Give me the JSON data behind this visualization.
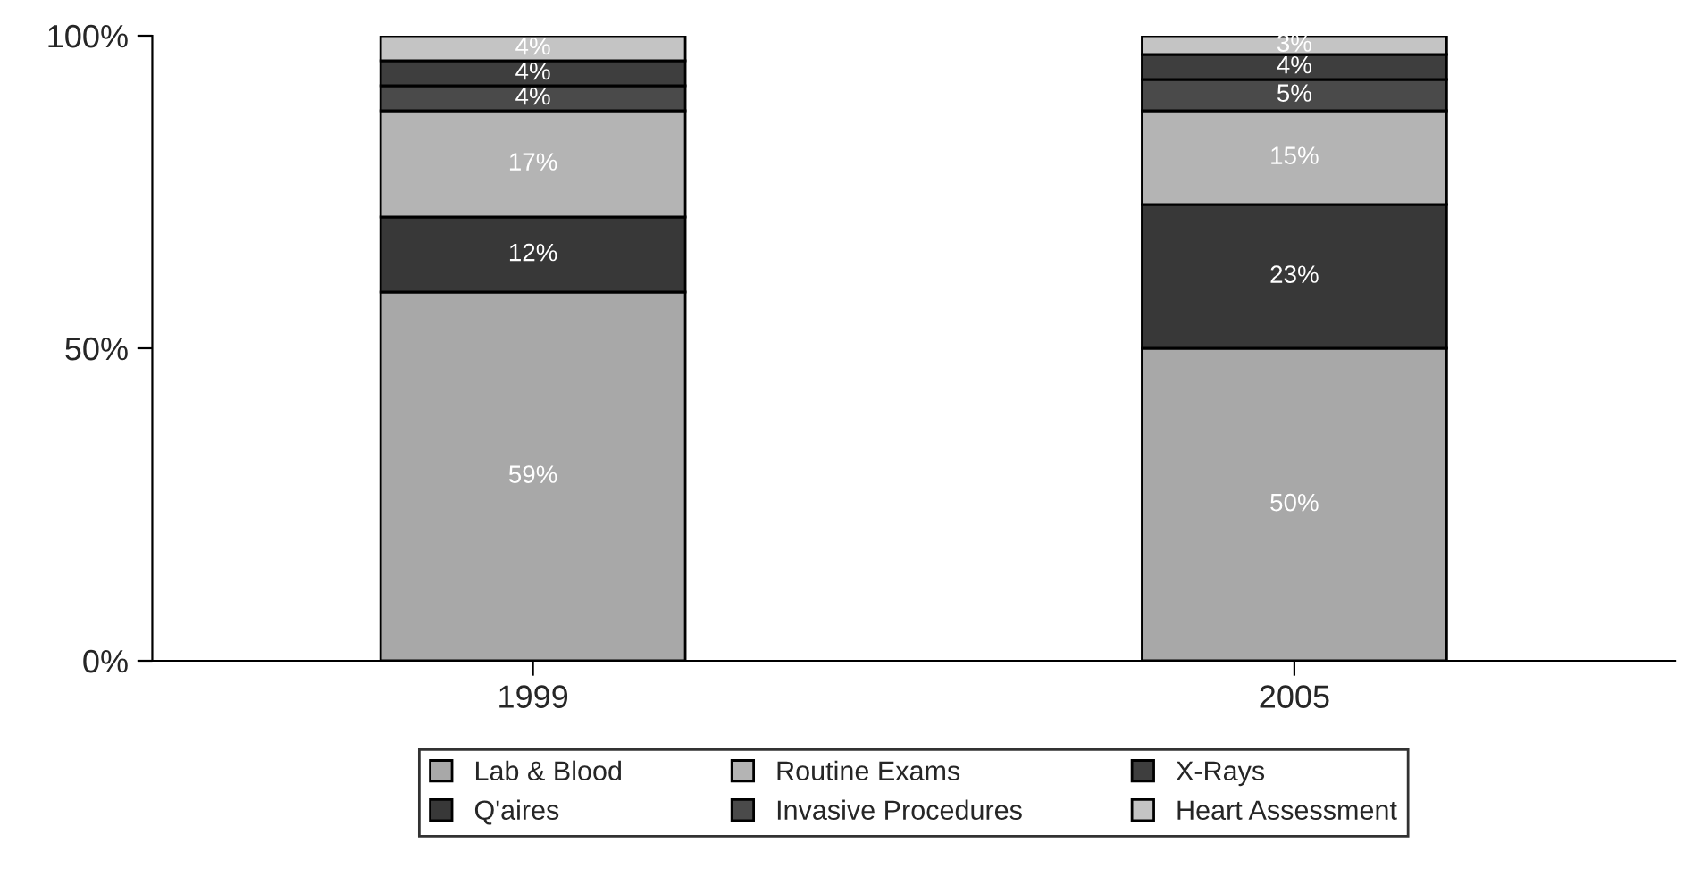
{
  "chart_data": {
    "type": "bar",
    "stacked": true,
    "categories": [
      "1999",
      "2005"
    ],
    "ylim": [
      0,
      100
    ],
    "yticks": [
      {
        "value": 0,
        "label": "0%"
      },
      {
        "value": 50,
        "label": "50%"
      },
      {
        "value": 100,
        "label": "100%"
      }
    ],
    "grid": false,
    "legend": "bottom",
    "series": [
      {
        "name": "Lab & Blood",
        "color": "#a8a8a8",
        "values": [
          59,
          50
        ],
        "value_labels": [
          "59%",
          "50%"
        ]
      },
      {
        "name": "Q'aires",
        "color": "#383838",
        "values": [
          12,
          23
        ],
        "value_labels": [
          "12%",
          "23%"
        ]
      },
      {
        "name": "Routine Exams",
        "color": "#b4b4b4",
        "values": [
          17,
          15
        ],
        "value_labels": [
          "17%",
          "15%"
        ]
      },
      {
        "name": "Invasive Procedures",
        "color": "#4a4a4a",
        "values": [
          4,
          5
        ],
        "value_labels": [
          "4%",
          "5%"
        ]
      },
      {
        "name": "X-Rays",
        "color": "#3e3e3e",
        "values": [
          4,
          4
        ],
        "value_labels": [
          "4%",
          "4%"
        ]
      },
      {
        "name": "Heart Assessment",
        "color": "#c4c4c4",
        "values": [
          4,
          3
        ],
        "value_labels": [
          "4%",
          "3%"
        ]
      }
    ]
  }
}
